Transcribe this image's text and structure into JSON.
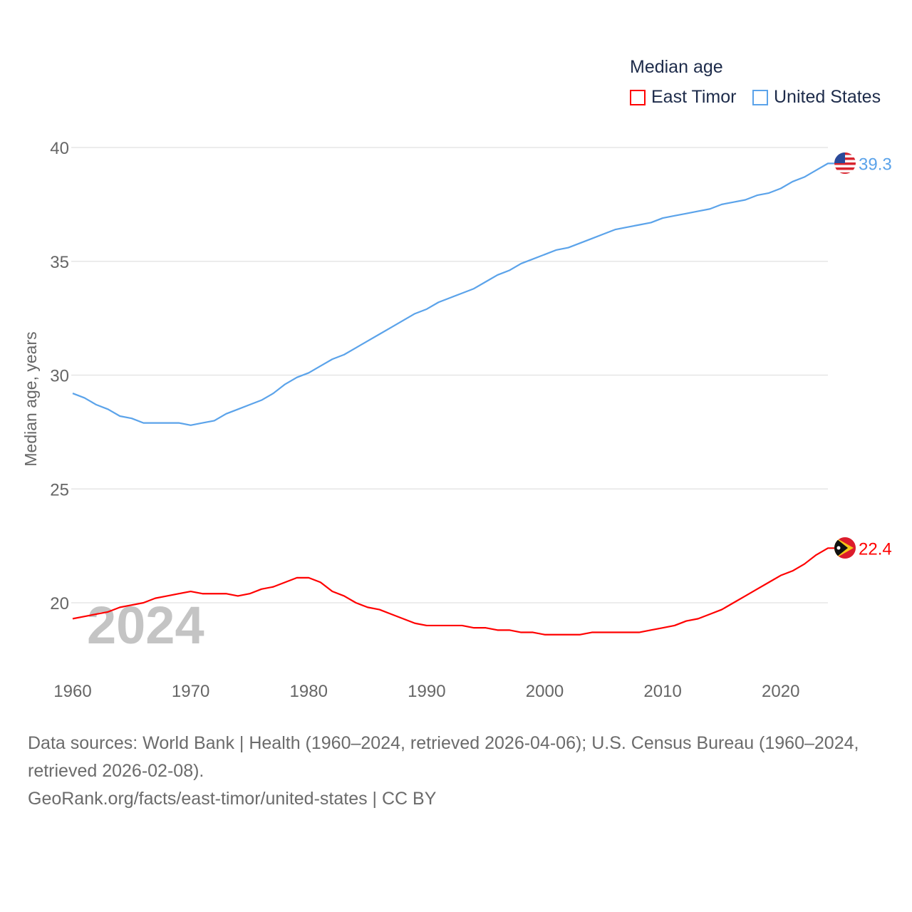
{
  "chart_data": {
    "type": "line",
    "title": "Median age",
    "xlabel": "",
    "ylabel": "Median age, years",
    "xlim": [
      1960,
      2024
    ],
    "ylim": [
      17.5,
      40
    ],
    "x_ticks": [
      "1960",
      "1970",
      "1980",
      "1990",
      "2000",
      "2010",
      "2020"
    ],
    "y_ticks": [
      "20",
      "25",
      "30",
      "35",
      "40"
    ],
    "grid": true,
    "legend_position": "top-right",
    "year_label": "2024",
    "x": [
      1960,
      1961,
      1962,
      1963,
      1964,
      1965,
      1966,
      1967,
      1968,
      1969,
      1970,
      1971,
      1972,
      1973,
      1974,
      1975,
      1976,
      1977,
      1978,
      1979,
      1980,
      1981,
      1982,
      1983,
      1984,
      1985,
      1986,
      1987,
      1988,
      1989,
      1990,
      1991,
      1992,
      1993,
      1994,
      1995,
      1996,
      1997,
      1998,
      1999,
      2000,
      2001,
      2002,
      2003,
      2004,
      2005,
      2006,
      2007,
      2008,
      2009,
      2010,
      2011,
      2012,
      2013,
      2014,
      2015,
      2016,
      2017,
      2018,
      2019,
      2020,
      2021,
      2022,
      2023,
      2024
    ],
    "series": [
      {
        "name": "East Timor",
        "color": "#ff0000",
        "end_label": "22.4",
        "values": [
          19.3,
          19.4,
          19.5,
          19.6,
          19.8,
          19.9,
          20.0,
          20.2,
          20.3,
          20.4,
          20.5,
          20.4,
          20.4,
          20.4,
          20.3,
          20.4,
          20.6,
          20.7,
          20.9,
          21.1,
          21.1,
          20.9,
          20.5,
          20.3,
          20.0,
          19.8,
          19.7,
          19.5,
          19.3,
          19.1,
          19.0,
          19.0,
          19.0,
          19.0,
          18.9,
          18.9,
          18.8,
          18.8,
          18.7,
          18.7,
          18.6,
          18.6,
          18.6,
          18.6,
          18.7,
          18.7,
          18.7,
          18.7,
          18.7,
          18.8,
          18.9,
          19.0,
          19.2,
          19.3,
          19.5,
          19.7,
          20.0,
          20.3,
          20.6,
          20.9,
          21.2,
          21.4,
          21.7,
          22.1,
          22.4
        ]
      },
      {
        "name": "United States",
        "color": "#5ba3ea",
        "end_label": "39.3",
        "values": [
          29.2,
          29.0,
          28.7,
          28.5,
          28.2,
          28.1,
          27.9,
          27.9,
          27.9,
          27.9,
          27.8,
          27.9,
          28.0,
          28.3,
          28.5,
          28.7,
          28.9,
          29.2,
          29.6,
          29.9,
          30.1,
          30.4,
          30.7,
          30.9,
          31.2,
          31.5,
          31.8,
          32.1,
          32.4,
          32.7,
          32.9,
          33.2,
          33.4,
          33.6,
          33.8,
          34.1,
          34.4,
          34.6,
          34.9,
          35.1,
          35.3,
          35.5,
          35.6,
          35.8,
          36.0,
          36.2,
          36.4,
          36.5,
          36.6,
          36.7,
          36.9,
          37.0,
          37.1,
          37.2,
          37.3,
          37.5,
          37.6,
          37.7,
          37.9,
          38.0,
          38.2,
          38.5,
          38.7,
          39.0,
          39.3
        ]
      }
    ]
  },
  "source": {
    "line1": "Data sources: World Bank | Health (1960–2024, retrieved 2026-04-06); U.S. Census Bureau (1960–2024, retrieved 2026-02-08).",
    "line2": "GeoRank.org/facts/east-timor/united-states | CC BY"
  }
}
